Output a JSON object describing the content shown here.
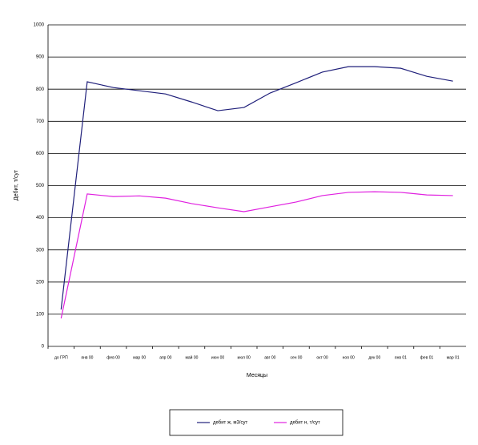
{
  "chart_data": {
    "type": "line",
    "y_label": "Дебит, т/сут",
    "x_label": "Месяцы",
    "categories": [
      "до ГРП",
      "янв 00",
      "фев 00",
      "мар 00",
      "апр 00",
      "май 00",
      "июн 00",
      "июл 00",
      "авг 00",
      "сен 00",
      "окт 00",
      "ноя 00",
      "дек 00",
      "янв 01",
      "фев 01",
      "мар 01"
    ],
    "series": [
      {
        "name": "дебит ж, м3/сут",
        "color": "#1f1f7a",
        "values": [
          115,
          823,
          805,
          795,
          785,
          760,
          733,
          743,
          788,
          820,
          853,
          870,
          870,
          865,
          840,
          825
        ]
      },
      {
        "name": "дебит н, т/сут",
        "color": "#e020e0",
        "values": [
          87,
          474,
          466,
          468,
          461,
          444,
          431,
          419,
          434,
          449,
          469,
          479,
          481,
          479,
          471,
          469
        ]
      }
    ],
    "ylim": [
      0,
      1000
    ],
    "yticks": [
      0,
      100,
      200,
      300,
      400,
      500,
      600,
      700,
      800,
      900,
      1000
    ],
    "grid": true,
    "legend": "bottom"
  }
}
